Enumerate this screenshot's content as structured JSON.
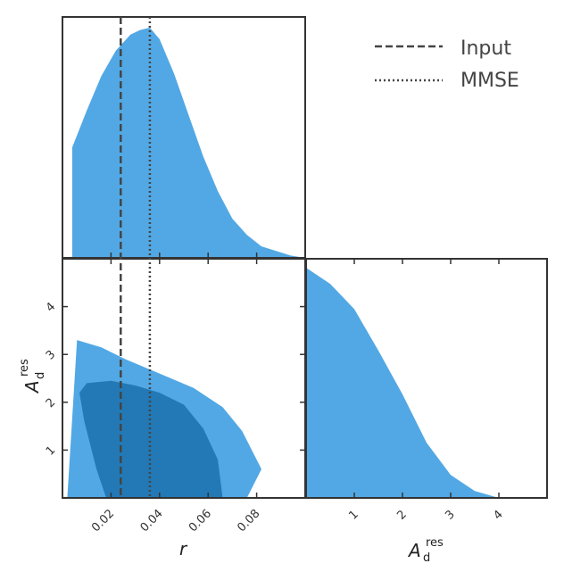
{
  "chart_data": {
    "type": "corner-plot",
    "parameters": [
      {
        "symbol": "r",
        "ticks": [
          0.02,
          0.04,
          0.06,
          0.08
        ],
        "tick_labels": [
          "0.02",
          "0.04",
          "0.06",
          "0.08"
        ],
        "range": [
          0.0,
          0.1
        ]
      },
      {
        "symbol": "A",
        "subscript": "d",
        "superscript": "res",
        "ticks": [
          1,
          2,
          3,
          4
        ],
        "tick_labels": [
          "1",
          "2",
          "3",
          "4"
        ],
        "range": [
          0.0,
          5.0
        ]
      }
    ],
    "reference_lines": [
      {
        "name": "Input",
        "style": "dashed",
        "value_r": 0.024
      },
      {
        "name": "MMSE",
        "style": "dotted",
        "value_r": 0.036
      }
    ],
    "legend": {
      "placement": "top-right",
      "entries": [
        "Input",
        "MMSE"
      ]
    },
    "colors": {
      "inner_contour": "#2279b5",
      "outer_contour": "#52a8e4",
      "marginal_fill": "#52a8e4",
      "reference_lines": "#444444",
      "frame": "#333333"
    },
    "marginal_r": {
      "x": [
        0.004,
        0.01,
        0.016,
        0.022,
        0.028,
        0.032,
        0.036,
        0.04,
        0.046,
        0.052,
        0.058,
        0.064,
        0.07,
        0.076,
        0.082,
        0.088,
        0.094,
        0.1
      ],
      "density": [
        0.48,
        0.64,
        0.79,
        0.9,
        0.97,
        0.99,
        1.0,
        0.95,
        0.8,
        0.62,
        0.44,
        0.29,
        0.17,
        0.1,
        0.05,
        0.03,
        0.01,
        0.0
      ]
    },
    "marginal_Ad": {
      "x": [
        0.0,
        0.5,
        1.0,
        1.5,
        2.0,
        2.5,
        3.0,
        3.5,
        4.0,
        4.15
      ],
      "density": [
        1.0,
        0.93,
        0.82,
        0.64,
        0.45,
        0.24,
        0.1,
        0.03,
        0.0,
        0.0
      ]
    },
    "contour_outer": {
      "r": [
        0.002,
        0.016,
        0.03,
        0.04,
        0.05,
        0.06,
        0.068,
        0.076,
        0.082,
        0.084,
        0.082,
        0.074,
        0.066,
        0.054,
        0.04,
        0.026,
        0.016,
        0.006
      ],
      "Ad": [
        0.0,
        0.0,
        0.0,
        0.0,
        0.0,
        0.0,
        0.0,
        0.0,
        0.6,
        0.0,
        0.6,
        1.4,
        1.9,
        2.3,
        2.6,
        2.9,
        3.15,
        3.3
      ]
    },
    "contour_inner": {
      "r": [
        0.018,
        0.033,
        0.048,
        0.066,
        0.064,
        0.058,
        0.05,
        0.04,
        0.03,
        0.02,
        0.01,
        0.007,
        0.009,
        0.014
      ],
      "Ad": [
        0.0,
        0.0,
        0.0,
        0.0,
        0.8,
        1.45,
        1.95,
        2.2,
        2.35,
        2.45,
        2.4,
        2.2,
        1.6,
        0.6
      ]
    }
  }
}
